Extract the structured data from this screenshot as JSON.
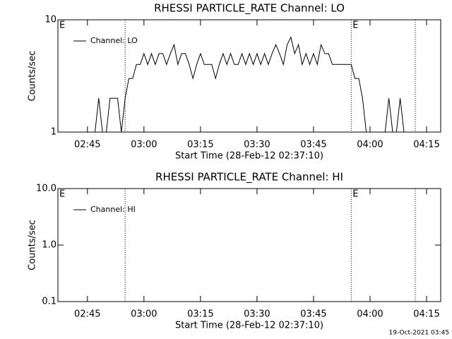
{
  "chart_data": [
    {
      "type": "line",
      "title": "RHESSI PARTICLE_RATE Channel: LO",
      "xlabel": "Start Time (28-Feb-12 02:37:10)",
      "ylabel": "Counts/sec",
      "ylog": true,
      "ylim": [
        1,
        10
      ],
      "yticks": [
        1,
        10
      ],
      "xlim": [
        "02:37:10",
        "04:18:45"
      ],
      "xticks": [
        "02:45",
        "03:00",
        "03:15",
        "03:30",
        "03:45",
        "04:00",
        "04:15"
      ],
      "legend": "top-left",
      "vlines": [
        "02:55",
        "03:55",
        "04:12"
      ],
      "markers": [
        {
          "x": "02:37:10",
          "label": "E"
        },
        {
          "x": "03:55",
          "label": "E"
        }
      ],
      "x": [
        "02:38",
        "02:39",
        "02:40",
        "02:41",
        "02:42",
        "02:43",
        "02:44",
        "02:45",
        "02:46",
        "02:47",
        "02:48",
        "02:49",
        "02:50",
        "02:51",
        "02:52",
        "02:53",
        "02:54",
        "02:55",
        "02:56",
        "02:57",
        "02:58",
        "02:59",
        "03:00",
        "03:01",
        "03:02",
        "03:03",
        "03:04",
        "03:05",
        "03:06",
        "03:07",
        "03:08",
        "03:09",
        "03:10",
        "03:11",
        "03:12",
        "03:13",
        "03:14",
        "03:15",
        "03:16",
        "03:17",
        "03:18",
        "03:19",
        "03:20",
        "03:21",
        "03:22",
        "03:23",
        "03:24",
        "03:25",
        "03:26",
        "03:27",
        "03:28",
        "03:29",
        "03:30",
        "03:31",
        "03:32",
        "03:33",
        "03:34",
        "03:35",
        "03:36",
        "03:37",
        "03:38",
        "03:39",
        "03:40",
        "03:41",
        "03:42",
        "03:43",
        "03:44",
        "03:45",
        "03:46",
        "03:47",
        "03:48",
        "03:49",
        "03:50",
        "03:51",
        "03:52",
        "03:53",
        "03:54",
        "03:55",
        "03:56",
        "03:57",
        "03:58",
        "03:59",
        "04:00",
        "04:01",
        "04:02",
        "04:03",
        "04:04",
        "04:05",
        "04:06",
        "04:07",
        "04:08",
        "04:09"
      ],
      "series": [
        {
          "name": "Channel: LO",
          "color": "#000000",
          "values": [
            1,
            1,
            1,
            1,
            1,
            1,
            1,
            1,
            1,
            1,
            2,
            1,
            1,
            2,
            2,
            2,
            1,
            2,
            3,
            3,
            4,
            4,
            5,
            4,
            5,
            4,
            5,
            5,
            4,
            5,
            6,
            4,
            5,
            5,
            4,
            3,
            4,
            5,
            4,
            4,
            4,
            3,
            4,
            5,
            4,
            5,
            4,
            4,
            5,
            4,
            5,
            4,
            5,
            4,
            5,
            4,
            5,
            6,
            5,
            4,
            6,
            7,
            5,
            6,
            4,
            5,
            4,
            5,
            4,
            6,
            5,
            5,
            4,
            4,
            4,
            4,
            4,
            4,
            3,
            3,
            2,
            1,
            1,
            1,
            1,
            1,
            1,
            2,
            1,
            1,
            2,
            1
          ]
        }
      ]
    },
    {
      "type": "line",
      "title": "RHESSI PARTICLE_RATE Channel: HI",
      "xlabel": "Start Time (28-Feb-12 02:37:10)",
      "ylabel": "Counts/sec",
      "ylog": true,
      "ylim": [
        0.1,
        10
      ],
      "yticks": [
        0.1,
        {
          "value": 1,
          "label": "1.0"
        },
        {
          "value": 10,
          "label": "10.0"
        }
      ],
      "xlim": [
        "02:37:10",
        "04:18:45"
      ],
      "xticks": [
        "02:45",
        "03:00",
        "03:15",
        "03:30",
        "03:45",
        "04:00",
        "04:15"
      ],
      "legend": "top-left",
      "vlines": [
        "02:55",
        "03:55",
        "04:12"
      ],
      "markers": [
        {
          "x": "02:37:10",
          "label": "E"
        },
        {
          "x": "03:55",
          "label": "E"
        }
      ],
      "x": [],
      "series": [
        {
          "name": "Channel: HI",
          "color": "#000000",
          "values": []
        }
      ]
    }
  ],
  "timestamp": "19-Oct-2021 03:45"
}
